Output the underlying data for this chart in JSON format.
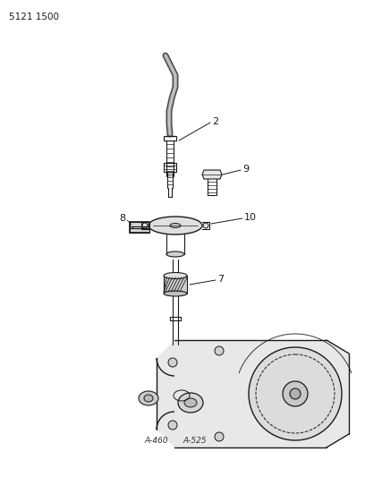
{
  "title_code": "5121 1500",
  "bg": "#ffffff",
  "lc": "#1a1a1a",
  "label_2": "2",
  "label_7": "7",
  "label_8": "8",
  "label_9": "9",
  "label_10": "10",
  "bottom_label_1": "A-460",
  "bottom_label_2": "A-525",
  "figsize": [
    4.08,
    5.33
  ],
  "dpi": 100
}
